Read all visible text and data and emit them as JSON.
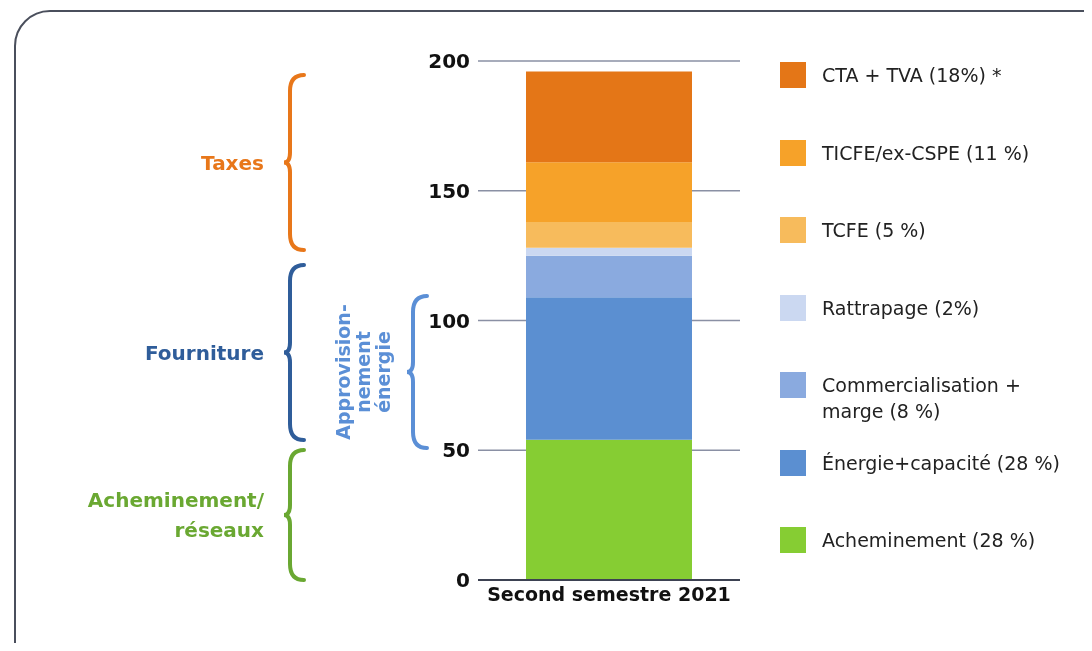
{
  "chart_data": {
    "type": "bar",
    "stacked": true,
    "categories": [
      "Second semestre 2021"
    ],
    "series": [
      {
        "name": "Acheminement (28 %)",
        "color": "#86cd33",
        "values": [
          54
        ]
      },
      {
        "name": "Énergie+capacité (28 %)",
        "color": "#5b8fd1",
        "values": [
          55
        ]
      },
      {
        "name": "Commercialisation + marge (8 %)",
        "color": "#8aaadf",
        "values": [
          16
        ]
      },
      {
        "name": "Rattrapage (2%)",
        "color": "#cbd8f1",
        "values": [
          3
        ]
      },
      {
        "name": "TCFE (5 %)",
        "color": "#f7bb5c",
        "values": [
          10
        ]
      },
      {
        "name": "TICFE/ex-CSPE (11 %)",
        "color": "#f6a229",
        "values": [
          23
        ]
      },
      {
        "name": "CTA + TVA (18%) *",
        "color": "#e47617",
        "values": [
          35
        ]
      }
    ],
    "ylim": [
      0,
      200
    ],
    "yticks": [
      0,
      50,
      100,
      150,
      200
    ],
    "grid": "y",
    "legend": "right",
    "annotations": [
      "Taxes",
      "Fourniture",
      "Acheminement/\nréseaux",
      "Approvision-\nnement\nénergie"
    ]
  }
}
